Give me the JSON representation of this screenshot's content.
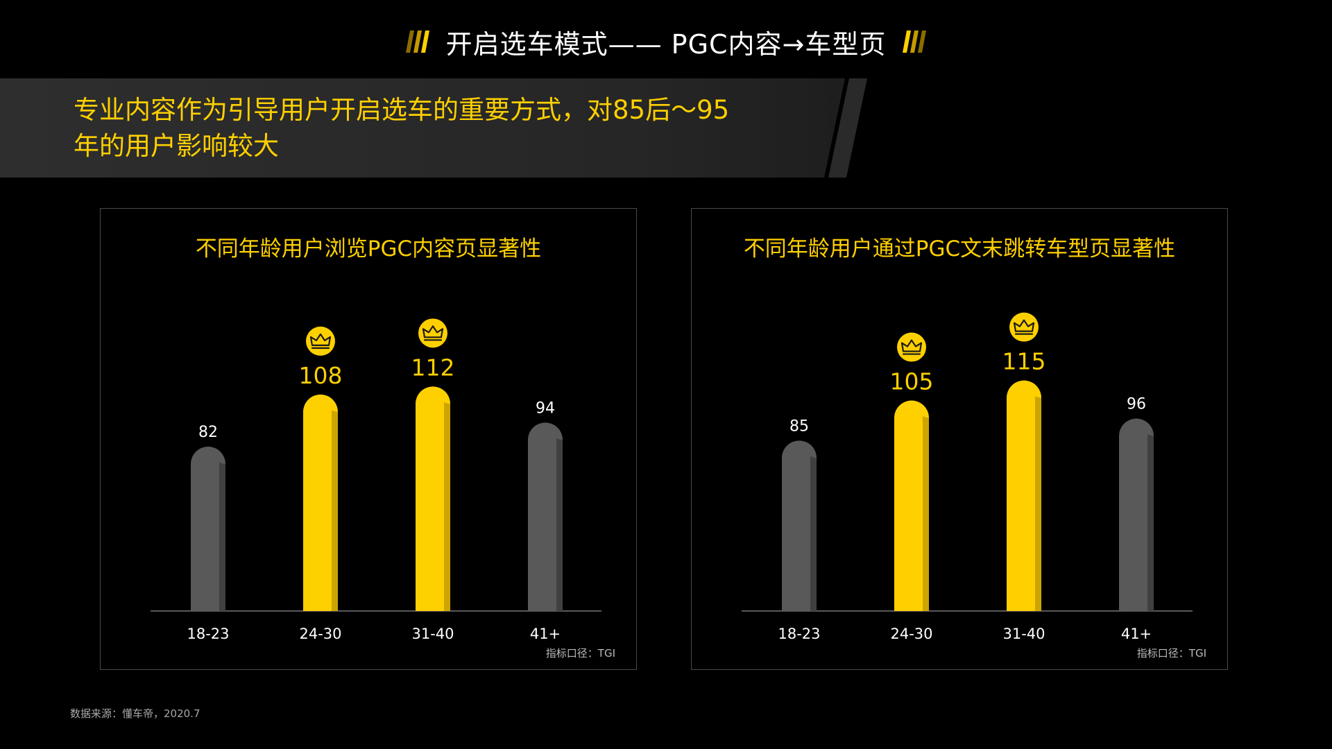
{
  "page": {
    "title": "开启选车模式—— PGC内容→车型页",
    "headline_lines": [
      "专业内容作为引导用户开启选车的重要方式，对85后～95",
      "年的用户影响较大"
    ],
    "source": "数据来源：懂车帝，2020.7",
    "title_mark_icon": "slanted-bars-icon",
    "highlight_icon": "crown-icon"
  },
  "colors": {
    "background": "#000000",
    "accent": "#ffd000",
    "accent_dark": "#c8a000",
    "muted_bar": "#595959",
    "muted_bar_dark": "#3d3d3d",
    "title_text": "#ffffff"
  },
  "chart_data": [
    {
      "type": "bar",
      "title": "不同年龄用户浏览PGC内容页显著性",
      "categories": [
        "18-23",
        "24-30",
        "31-40",
        "41+"
      ],
      "values": [
        82,
        108,
        112,
        94
      ],
      "highlighted": [
        false,
        true,
        true,
        false
      ],
      "note": "指标口径：TGI",
      "ylim": [
        0,
        120
      ],
      "grid": false,
      "legend": "none"
    },
    {
      "type": "bar",
      "title": "不同年龄用户通过PGC文末跳转车型页显著性",
      "categories": [
        "18-23",
        "24-30",
        "31-40",
        "41+"
      ],
      "values": [
        85,
        105,
        115,
        96
      ],
      "highlighted": [
        false,
        true,
        true,
        false
      ],
      "note": "指标口径：TGI",
      "ylim": [
        0,
        120
      ],
      "grid": false,
      "legend": "none"
    }
  ]
}
